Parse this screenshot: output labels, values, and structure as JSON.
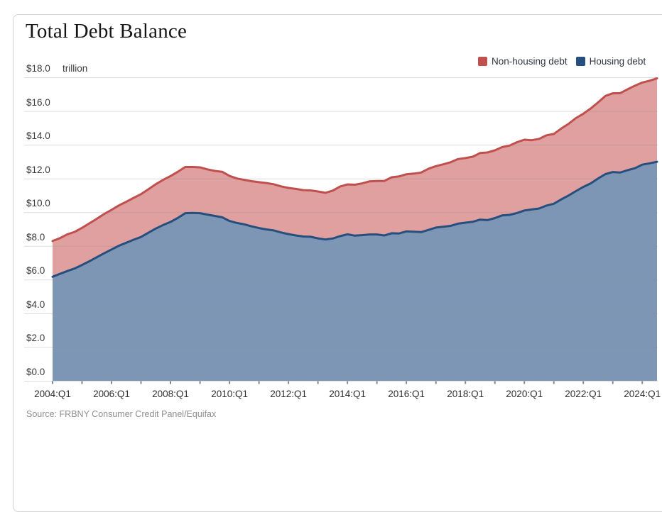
{
  "title": "Total Debt Balance",
  "unit_label": "trillion",
  "source": "Source: FRBNY Consumer Credit Panel/Equifax",
  "legend": [
    {
      "label": "Non-housing debt",
      "color": "#c0504d"
    },
    {
      "label": "Housing debt",
      "color": "#264f7d"
    }
  ],
  "chart_data": {
    "type": "area",
    "stacked": true,
    "title": "Total Debt Balance",
    "ylabel": "$ trillion",
    "ylim": [
      0,
      18
    ],
    "ytick_step": 2,
    "grid": true,
    "legend_position": "top-right",
    "ytick_labels": [
      "$0.0",
      "$2.0",
      "$4.0",
      "$6.0",
      "$8.0",
      "$10.0",
      "$12.0",
      "$14.0",
      "$16.0",
      "$18.0"
    ],
    "xtick_labels": [
      "2004:Q1",
      "2006:Q1",
      "2008:Q1",
      "2010:Q1",
      "2012:Q1",
      "2014:Q1",
      "2016:Q1",
      "2018:Q1",
      "2020:Q1",
      "2022:Q1",
      "2024:Q1"
    ],
    "x": [
      "2004:Q1",
      "2004:Q2",
      "2004:Q3",
      "2004:Q4",
      "2005:Q1",
      "2005:Q2",
      "2005:Q3",
      "2005:Q4",
      "2006:Q1",
      "2006:Q2",
      "2006:Q3",
      "2006:Q4",
      "2007:Q1",
      "2007:Q2",
      "2007:Q3",
      "2007:Q4",
      "2008:Q1",
      "2008:Q2",
      "2008:Q3",
      "2008:Q4",
      "2009:Q1",
      "2009:Q2",
      "2009:Q3",
      "2009:Q4",
      "2010:Q1",
      "2010:Q2",
      "2010:Q3",
      "2010:Q4",
      "2011:Q1",
      "2011:Q2",
      "2011:Q3",
      "2011:Q4",
      "2012:Q1",
      "2012:Q2",
      "2012:Q3",
      "2012:Q4",
      "2013:Q1",
      "2013:Q2",
      "2013:Q3",
      "2013:Q4",
      "2014:Q1",
      "2014:Q2",
      "2014:Q3",
      "2014:Q4",
      "2015:Q1",
      "2015:Q2",
      "2015:Q3",
      "2015:Q4",
      "2016:Q1",
      "2016:Q2",
      "2016:Q3",
      "2016:Q4",
      "2017:Q1",
      "2017:Q2",
      "2017:Q3",
      "2017:Q4",
      "2018:Q1",
      "2018:Q2",
      "2018:Q3",
      "2018:Q4",
      "2019:Q1",
      "2019:Q2",
      "2019:Q3",
      "2019:Q4",
      "2020:Q1",
      "2020:Q2",
      "2020:Q3",
      "2020:Q4",
      "2021:Q1",
      "2021:Q2",
      "2021:Q3",
      "2021:Q4",
      "2022:Q1",
      "2022:Q2",
      "2022:Q3",
      "2022:Q4",
      "2023:Q1",
      "2023:Q2",
      "2023:Q3",
      "2023:Q4",
      "2024:Q1",
      "2024:Q2",
      "2024:Q3"
    ],
    "series": [
      {
        "name": "Housing debt",
        "line_color": "#264f7d",
        "fill_color": "#7e96b5",
        "values": [
          6.17,
          6.34,
          6.51,
          6.66,
          6.87,
          7.09,
          7.33,
          7.56,
          7.79,
          8.01,
          8.19,
          8.37,
          8.53,
          8.78,
          9.03,
          9.24,
          9.42,
          9.66,
          9.94,
          9.96,
          9.94,
          9.86,
          9.78,
          9.7,
          9.48,
          9.36,
          9.28,
          9.16,
          9.06,
          8.98,
          8.92,
          8.8,
          8.7,
          8.62,
          8.56,
          8.54,
          8.45,
          8.38,
          8.44,
          8.58,
          8.69,
          8.61,
          8.64,
          8.68,
          8.68,
          8.62,
          8.75,
          8.74,
          8.86,
          8.84,
          8.82,
          8.95,
          9.09,
          9.14,
          9.19,
          9.32,
          9.38,
          9.43,
          9.56,
          9.53,
          9.65,
          9.81,
          9.84,
          9.95,
          10.1,
          10.16,
          10.22,
          10.39,
          10.5,
          10.76,
          10.99,
          11.25,
          11.5,
          11.71,
          12.0,
          12.26,
          12.38,
          12.35,
          12.49,
          12.61,
          12.82,
          12.9,
          12.99
        ]
      },
      {
        "name": "Non-housing debt",
        "line_color": "#c0504d",
        "fill_color": "#e0a0a0",
        "values": [
          2.12,
          2.12,
          2.18,
          2.17,
          2.2,
          2.25,
          2.28,
          2.33,
          2.35,
          2.39,
          2.43,
          2.48,
          2.54,
          2.58,
          2.63,
          2.68,
          2.72,
          2.74,
          2.74,
          2.72,
          2.72,
          2.68,
          2.67,
          2.7,
          2.67,
          2.64,
          2.64,
          2.68,
          2.72,
          2.75,
          2.74,
          2.73,
          2.74,
          2.76,
          2.75,
          2.75,
          2.78,
          2.77,
          2.84,
          2.94,
          2.96,
          3.02,
          3.07,
          3.15,
          3.17,
          3.23,
          3.32,
          3.38,
          3.39,
          3.45,
          3.53,
          3.63,
          3.64,
          3.7,
          3.77,
          3.83,
          3.83,
          3.86,
          3.95,
          4.01,
          4.02,
          4.05,
          4.11,
          4.2,
          4.2,
          4.11,
          4.13,
          4.17,
          4.14,
          4.2,
          4.25,
          4.33,
          4.34,
          4.44,
          4.51,
          4.64,
          4.67,
          4.71,
          4.8,
          4.89,
          4.87,
          4.9,
          4.95
        ]
      }
    ]
  }
}
